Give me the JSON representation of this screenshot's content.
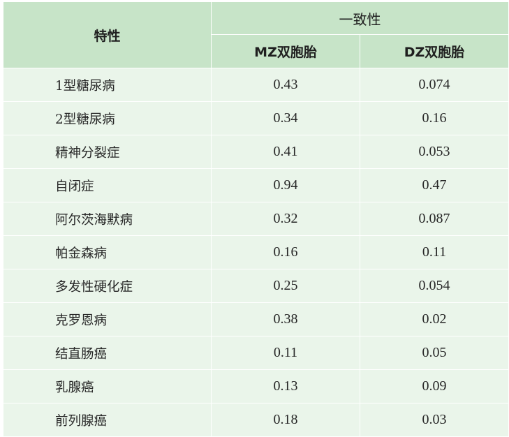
{
  "table": {
    "header": {
      "trait": "特性",
      "concordance": "一致性",
      "mz": "MZ双胞胎",
      "dz": "DZ双胞胎"
    },
    "rows": [
      {
        "trait": "1型糖尿病",
        "mz": "0.43",
        "dz": "0.074"
      },
      {
        "trait": "2型糖尿病",
        "mz": "0.34",
        "dz": "0.16"
      },
      {
        "trait": "精神分裂症",
        "mz": "0.41",
        "dz": "0.053"
      },
      {
        "trait": "自闭症",
        "mz": "0.94",
        "dz": "0.47"
      },
      {
        "trait": "阿尔茨海默病",
        "mz": "0.32",
        "dz": "0.087"
      },
      {
        "trait": "帕金森病",
        "mz": "0.16",
        "dz": "0.11"
      },
      {
        "trait": "多发性硬化症",
        "mz": "0.25",
        "dz": "0.054"
      },
      {
        "trait": "克罗恩病",
        "mz": "0.38",
        "dz": "0.02"
      },
      {
        "trait": "结直肠癌",
        "mz": "0.11",
        "dz": "0.05"
      },
      {
        "trait": "乳腺癌",
        "mz": "0.13",
        "dz": "0.09"
      },
      {
        "trait": "前列腺癌",
        "mz": "0.18",
        "dz": "0.03"
      }
    ],
    "colors": {
      "header_bg": "#c7e4c8",
      "body_bg": "#eaf5ea",
      "grid": "#ffffff"
    }
  }
}
